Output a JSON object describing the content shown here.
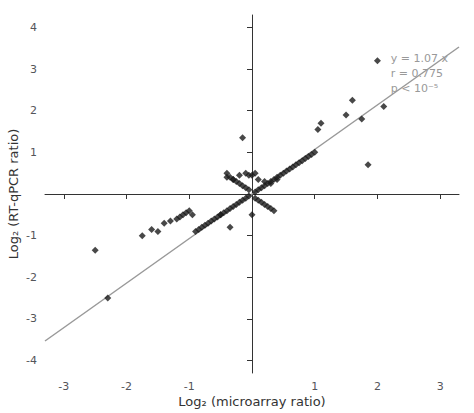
{
  "chart_data": {
    "type": "scatter",
    "xlabel": "Log₂ (microarray ratio)",
    "ylabel": "Log₂ (RT-qPCR ratio)",
    "xlim": [
      -3.3,
      3.3
    ],
    "ylim": [
      -4.3,
      4.3
    ],
    "xticks": [
      -3,
      -2,
      -1,
      {
        "value": 0,
        "label": ""
      },
      1,
      2,
      3
    ],
    "yticks": [
      -4,
      -3,
      -2,
      -1,
      {
        "value": 0,
        "label": ""
      },
      1,
      2,
      3,
      4
    ],
    "grid": false,
    "color": "#ffffff",
    "annotations": [
      {
        "text": "y = 1.07 x\nr = 0.775\np < 10⁻⁵",
        "color": "#999999"
      }
    ],
    "series": [
      {
        "type": "line",
        "line_style": "solid",
        "color": "#999999",
        "x": [
          -3.3,
          3.3
        ],
        "values": [
          -3.531,
          3.531
        ]
      },
      {
        "type": "scatter",
        "marker": "diamond",
        "color": "#1a1a1a",
        "x": [
          -0.05,
          -0.1,
          -0.15,
          -0.2,
          -0.25,
          -0.3,
          -0.35,
          -0.4,
          -0.45,
          -0.5,
          -0.05,
          -0.1,
          -0.15,
          -0.2,
          -0.25,
          -0.3,
          -0.35,
          -0.4,
          0.05,
          0.1,
          0.15,
          0.2,
          0.25,
          0.3,
          0.35,
          0.4,
          0.45,
          0.5,
          0.05,
          0.1,
          0.15,
          0.2,
          0.25,
          0.3,
          0.35,
          -0.5,
          -0.55,
          -0.6,
          -0.65,
          -0.7,
          -0.75,
          -0.8,
          -0.85,
          -0.9,
          -0.95,
          -1.0,
          -1.05,
          -1.1,
          -1.15,
          -1.2,
          -1.3,
          -1.4,
          -1.5,
          0.55,
          0.6,
          0.65,
          0.7,
          0.75,
          0.8,
          0.85,
          0.9,
          0.95,
          1.0,
          1.05,
          1.1,
          -0.4,
          -0.3,
          -0.2,
          -0.1,
          0.0,
          0.1,
          0.2,
          0.3,
          0.4,
          1.5,
          1.6,
          1.75,
          1.85,
          2.0,
          2.1,
          -2.3,
          -2.5,
          -0.35,
          -0.15,
          0.0,
          0.05,
          -0.05,
          -1.6,
          -1.75
        ],
        "values": [
          -0.05,
          -0.1,
          -0.15,
          -0.2,
          -0.25,
          -0.3,
          -0.35,
          -0.4,
          -0.45,
          -0.5,
          0.1,
          0.15,
          0.2,
          0.25,
          0.3,
          0.35,
          0.4,
          0.5,
          0.05,
          0.1,
          0.15,
          0.2,
          0.25,
          0.3,
          0.35,
          0.4,
          0.45,
          0.5,
          -0.1,
          -0.15,
          -0.2,
          -0.25,
          -0.3,
          -0.35,
          -0.4,
          -0.5,
          -0.55,
          -0.6,
          -0.65,
          -0.7,
          -0.75,
          -0.8,
          -0.85,
          -0.9,
          -0.5,
          -0.4,
          -0.45,
          -0.5,
          -0.55,
          -0.6,
          -0.65,
          -0.7,
          -0.9,
          0.55,
          0.6,
          0.65,
          0.7,
          0.75,
          0.8,
          0.85,
          0.9,
          0.95,
          1.0,
          1.55,
          1.7,
          0.4,
          0.35,
          0.45,
          0.5,
          0.45,
          0.35,
          0.3,
          0.25,
          0.35,
          1.9,
          2.25,
          1.8,
          0.7,
          3.2,
          2.1,
          -2.5,
          -1.35,
          -0.8,
          1.35,
          -0.5,
          0.5,
          0.45,
          -0.85,
          -1.0
        ]
      }
    ]
  }
}
